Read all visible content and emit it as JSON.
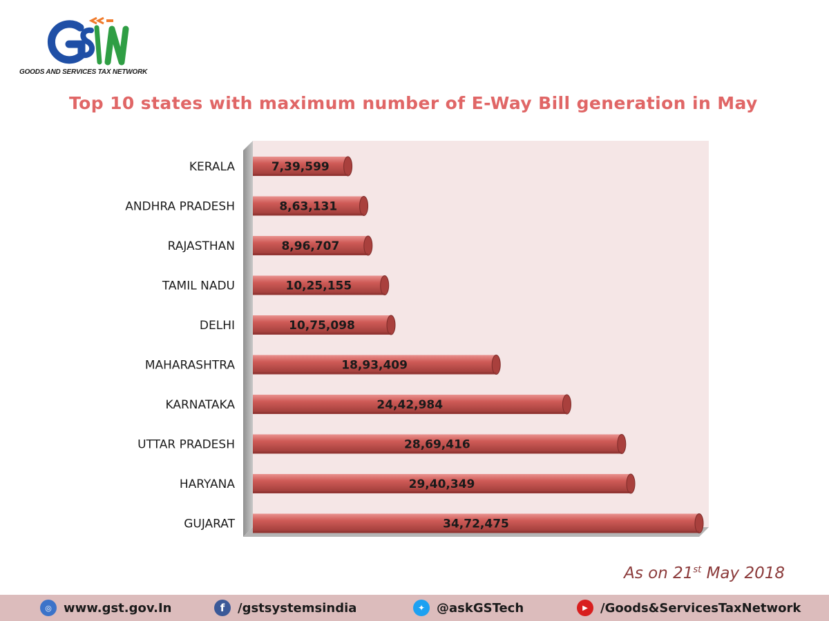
{
  "brand": {
    "logo_letters": "GSTN",
    "caption": "GOODS AND SERVICES TAX NETWORK",
    "colors": {
      "blue": "#1f4fa6",
      "green": "#2f9e44",
      "orange": "#f07a2a"
    }
  },
  "title": "Top 10 states with maximum number of E-Way Bill generation in May",
  "as_on": {
    "prefix": "As on 21",
    "sup": "st",
    "suffix": " May 2018"
  },
  "chart_data": {
    "type": "bar",
    "orientation": "horizontal",
    "title": "Top 10 states with maximum number of E-Way Bill generation in May",
    "categories": [
      "KERALA",
      "ANDHRA PRADESH",
      "RAJASTHAN",
      "TAMIL NADU",
      "DELHI",
      "MAHARASHTRA",
      "KARNATAKA",
      "UTTAR PRADESH",
      "HARYANA",
      "GUJARAT"
    ],
    "values": [
      739599,
      863131,
      896707,
      1025155,
      1075098,
      1893409,
      2442984,
      2869416,
      2940349,
      3472475
    ],
    "value_labels": [
      "7,39,599",
      "8,63,131",
      "8,96,707",
      "10,25,155",
      "10,75,098",
      "18,93,409",
      "24,42,984",
      "28,69,416",
      "29,40,349",
      "34,72,475"
    ],
    "xlim": [
      0,
      3472475
    ],
    "grid": false,
    "legend": "none",
    "colors": {
      "bar": "#c0504d",
      "plot_bg": "#f5e6e6",
      "wall": "#b0b0b0"
    }
  },
  "footer": {
    "website": {
      "icon": "globe-icon",
      "text": "www.gst.gov.In"
    },
    "facebook": {
      "icon": "facebook-icon",
      "text": "/gstsystemsindia"
    },
    "twitter": {
      "icon": "twitter-icon",
      "text": "@askGSTech"
    },
    "youtube": {
      "icon": "youtube-icon",
      "text": "/Goods&ServicesTaxNetwork"
    }
  }
}
